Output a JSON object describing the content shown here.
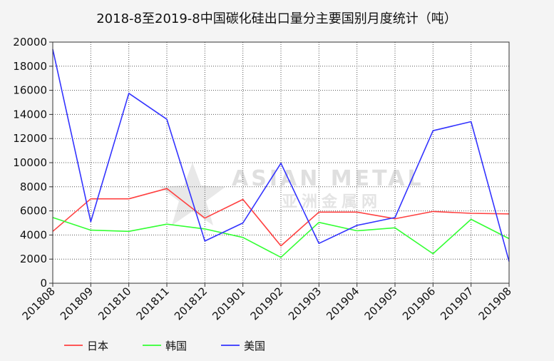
{
  "chart_data": {
    "type": "line",
    "title": "2018-8至2019-8中国碳化硅出口量分主要国别月度统计（吨）",
    "categories": [
      "201808",
      "201809",
      "201810",
      "201811",
      "201812",
      "201901",
      "201902",
      "201903",
      "201904",
      "201905",
      "201906",
      "201907",
      "201908"
    ],
    "ylim": [
      0,
      20000
    ],
    "yticks": [
      0,
      2000,
      4000,
      6000,
      8000,
      10000,
      12000,
      14000,
      16000,
      18000,
      20000
    ],
    "grid": true,
    "legend_position": "bottom-left",
    "series": [
      {
        "name": "日本",
        "color": "#ff4040",
        "values": [
          4300,
          7000,
          7000,
          7850,
          5400,
          6950,
          3100,
          5900,
          5900,
          5350,
          5950,
          5800,
          5750
        ]
      },
      {
        "name": "韩国",
        "color": "#33ff33",
        "values": [
          5450,
          4400,
          4300,
          4900,
          4500,
          3800,
          2150,
          5050,
          4350,
          4600,
          2450,
          5300,
          3700
        ]
      },
      {
        "name": "美国",
        "color": "#3333ff",
        "values": [
          19400,
          5100,
          15750,
          13600,
          3500,
          5000,
          9950,
          3300,
          4800,
          5450,
          12650,
          13400,
          1800
        ]
      }
    ]
  },
  "watermark": {
    "en": "ASIAN METAL",
    "cn": "亚洲金属网"
  }
}
